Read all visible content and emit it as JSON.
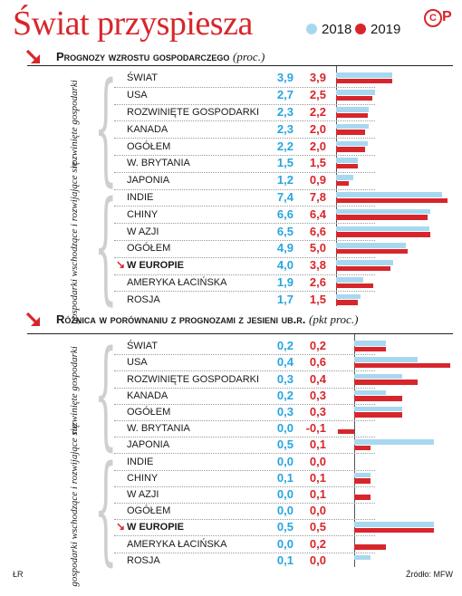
{
  "title": "Świat przyspiesza",
  "legend": [
    {
      "label": "2018",
      "color": "#a8d8f0"
    },
    {
      "label": "2019",
      "color": "#d7262b"
    }
  ],
  "logo": {
    "circle": "C",
    "letter": "P"
  },
  "colors": {
    "accent": "#d7262b",
    "light_blue": "#a8d8f0",
    "blue_text": "#29a5df"
  },
  "sections": [
    {
      "id": "growth",
      "title": "Prognozy wzrostu gospodarczego",
      "unit": "(proc.)",
      "groups": [
        "rozwinięte gospodarki",
        "gospodarki wschodzące i rozwijające się"
      ],
      "markers": [
        "↘",
        "↗"
      ],
      "rows": [
        {
          "label": "ŚWIAT"
        },
        {
          "label": "USA"
        },
        {
          "label": "ROZWINIĘTE GOSPODARKI"
        },
        {
          "label": "KANADA"
        },
        {
          "label": "OGÓŁEM"
        },
        {
          "label": "W. BRYTANIA"
        },
        {
          "label": "JAPONIA"
        },
        {
          "label": "INDIE"
        },
        {
          "label": "CHINY"
        },
        {
          "label": "W AZJI"
        },
        {
          "label": "OGÓŁEM"
        },
        {
          "label": "W EUROPIE"
        },
        {
          "label": "AMERYKA ŁACIŃSKA"
        },
        {
          "label": "ROSJA"
        }
      ]
    },
    {
      "id": "diff",
      "title": "Różnica w porównaniu z prognozami z jesieni ub.r.",
      "unit": "(pkt proc.)",
      "groups": [
        "rozwinięte gospodarki",
        "gospodarki wschodzące i rozwijające się"
      ],
      "markers": [
        "↘",
        "↗"
      ],
      "rows": [
        {
          "label": "ŚWIAT"
        },
        {
          "label": "USA"
        },
        {
          "label": "ROZWINIĘTE GOSPODARKI"
        },
        {
          "label": "KANADA"
        },
        {
          "label": "OGÓŁEM"
        },
        {
          "label": "W. BRYTANIA"
        },
        {
          "label": "JAPONIA"
        },
        {
          "label": "INDIE"
        },
        {
          "label": "CHINY"
        },
        {
          "label": "W AZJI"
        },
        {
          "label": "OGÓŁEM"
        },
        {
          "label": "W EUROPIE"
        },
        {
          "label": "AMERYKA ŁACIŃSKA"
        },
        {
          "label": "ROSJA"
        }
      ]
    }
  ],
  "chart_data": [
    {
      "type": "bar",
      "title": "Prognozy wzrostu gospodarczego (proc.)",
      "categories": [
        "ŚWIAT",
        "USA",
        "ROZWINIĘTE GOSPODARKI",
        "KANADA",
        "OGÓŁEM",
        "W. BRYTANIA",
        "JAPONIA",
        "INDIE",
        "CHINY",
        "W AZJI",
        "OGÓŁEM",
        "W EUROPIE",
        "AMERYKA ŁACIŃSKA",
        "ROSJA"
      ],
      "series": [
        {
          "name": "2018",
          "values": [
            3.9,
            2.7,
            2.3,
            2.3,
            2.2,
            1.5,
            1.2,
            7.4,
            6.6,
            6.5,
            4.9,
            4.0,
            1.9,
            1.7
          ],
          "labels": [
            "3,9",
            "2,7",
            "2,3",
            "2,3",
            "2,2",
            "1,5",
            "1,2",
            "7,4",
            "6,6",
            "6,5",
            "4,9",
            "4,0",
            "1,9",
            "1,7"
          ]
        },
        {
          "name": "2019",
          "values": [
            3.9,
            2.5,
            2.2,
            2.0,
            2.0,
            1.5,
            0.9,
            7.8,
            6.4,
            6.6,
            5.0,
            3.8,
            2.6,
            1.5
          ],
          "labels": [
            "3,9",
            "2,5",
            "2,2",
            "2,0",
            "2,0",
            "1,5",
            "0,9",
            "7,8",
            "6,4",
            "6,6",
            "5,0",
            "3,8",
            "2,6",
            "1,5"
          ]
        }
      ],
      "xlim": [
        0,
        8
      ]
    },
    {
      "type": "bar",
      "title": "Różnica w porównaniu z prognozami z jesieni ub.r. (pkt proc.)",
      "categories": [
        "ŚWIAT",
        "USA",
        "ROZWINIĘTE GOSPODARKI",
        "KANADA",
        "OGÓŁEM",
        "W. BRYTANIA",
        "JAPONIA",
        "INDIE",
        "CHINY",
        "W AZJI",
        "OGÓŁEM",
        "W EUROPIE",
        "AMERYKA ŁACIŃSKA",
        "ROSJA"
      ],
      "series": [
        {
          "name": "2018",
          "values": [
            0.2,
            0.4,
            0.3,
            0.2,
            0.3,
            0.0,
            0.5,
            0.0,
            0.1,
            0.0,
            0.0,
            0.5,
            0.0,
            0.1
          ],
          "labels": [
            "0,2",
            "0,4",
            "0,3",
            "0,2",
            "0,3",
            "0,0",
            "0,5",
            "0,0",
            "0,1",
            "0,0",
            "0,0",
            "0,5",
            "0,0",
            "0,1"
          ]
        },
        {
          "name": "2019",
          "values": [
            0.2,
            0.6,
            0.4,
            0.3,
            0.3,
            -0.1,
            0.1,
            0.0,
            0.1,
            0.1,
            0.0,
            0.5,
            0.2,
            0.0
          ],
          "labels": [
            "0,2",
            "0,6",
            "0,4",
            "0,3",
            "0,3",
            "-0,1",
            "0,1",
            "0,0",
            "0,1",
            "0,1",
            "0,0",
            "0,5",
            "0,2",
            "0,0"
          ]
        }
      ],
      "xlim": [
        -0.1,
        0.6
      ]
    }
  ],
  "footer": {
    "left": "ŁR",
    "right": "Źródło: MFW"
  }
}
